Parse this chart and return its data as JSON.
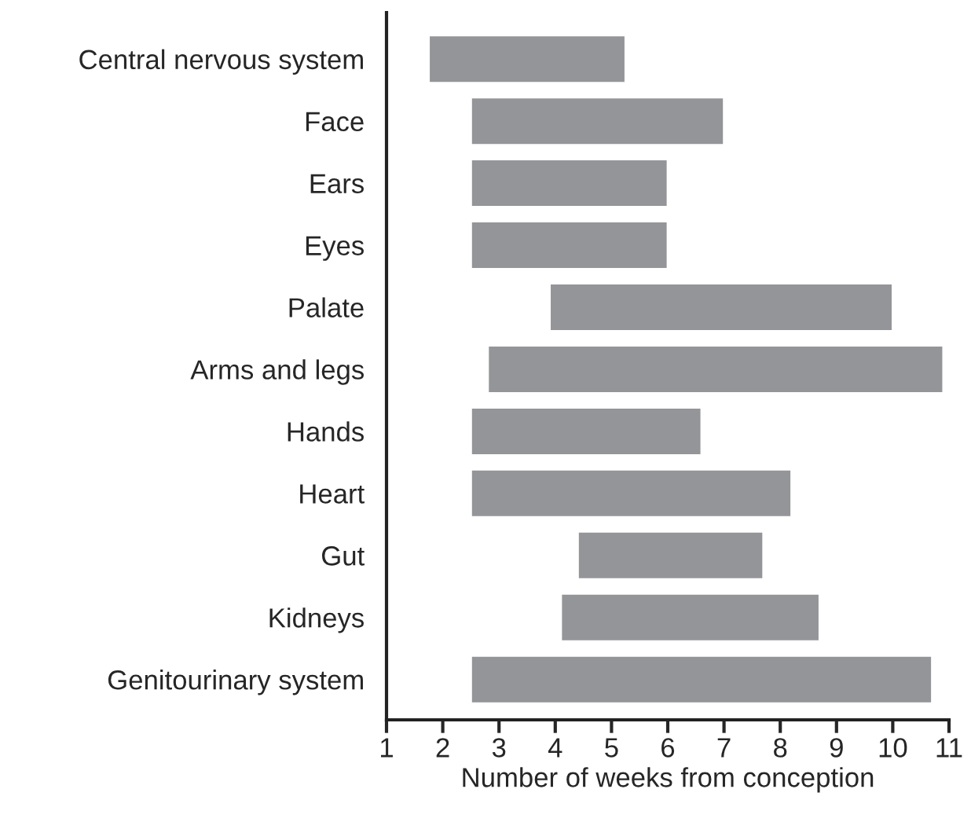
{
  "chart_data": {
    "type": "bar",
    "orientation": "horizontal",
    "xlabel": "Number of weeks from conception",
    "categories": [
      "Central nervous system",
      "Face",
      "Ears",
      "Eyes",
      "Palate",
      "Arms and legs",
      "Hands",
      "Heart",
      "Gut",
      "Kidneys",
      "Genitourinary system"
    ],
    "base": [
      1.75,
      2.5,
      2.5,
      2.5,
      3.9,
      2.8,
      2.5,
      2.5,
      4.4,
      4.1,
      2.5
    ],
    "values": [
      3.5,
      4.5,
      3.5,
      3.5,
      6.1,
      8.1,
      4.1,
      5.7,
      3.3,
      4.6,
      8.2
    ],
    "color": "#949598",
    "xlim": [
      1,
      11
    ],
    "xticks": [
      1,
      2,
      3,
      4,
      5,
      6,
      7,
      8,
      9,
      10,
      11
    ],
    "grid": false,
    "legend": false
  }
}
